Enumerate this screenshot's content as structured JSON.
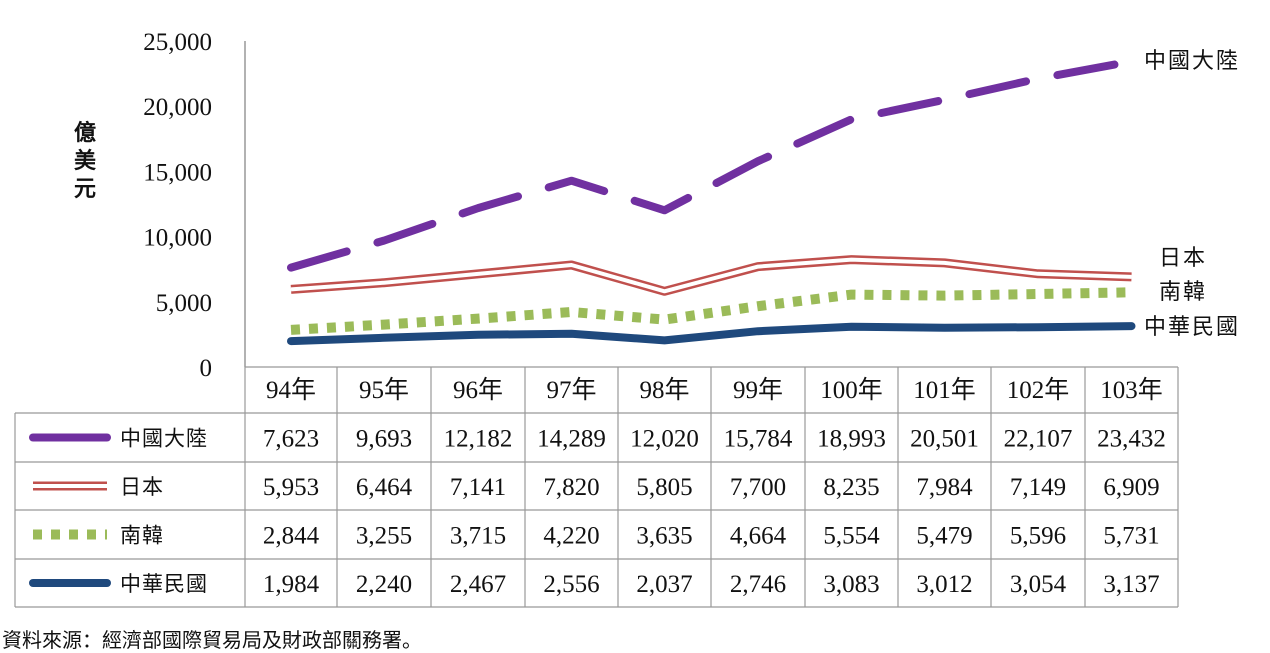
{
  "chart_data": {
    "type": "line",
    "ylabel": "億美元",
    "ylim": [
      0,
      25000
    ],
    "yticks": [
      "0",
      "5,000",
      "10,000",
      "15,000",
      "20,000",
      "25,000"
    ],
    "categories": [
      "94年",
      "95年",
      "96年",
      "97年",
      "98年",
      "99年",
      "100年",
      "101年",
      "102年",
      "103年"
    ],
    "series": [
      {
        "name": "中國大陸",
        "values": [
          7623,
          9693,
          12182,
          14289,
          12020,
          15784,
          18993,
          20501,
          22107,
          23432
        ],
        "display": [
          "7,623",
          "9,693",
          "12,182",
          "14,289",
          "12,020",
          "15,784",
          "18,993",
          "20,501",
          "22,107",
          "23,432"
        ],
        "color": "#7030a0",
        "style": "dashed"
      },
      {
        "name": "日本",
        "values": [
          5953,
          6464,
          7141,
          7820,
          5805,
          7700,
          8235,
          7984,
          7149,
          6909
        ],
        "display": [
          "5,953",
          "6,464",
          "7,141",
          "7,820",
          "5,805",
          "7,700",
          "8,235",
          "7,984",
          "7,149",
          "6,909"
        ],
        "color": "#c0504d",
        "style": "double"
      },
      {
        "name": "南韓",
        "values": [
          2844,
          3255,
          3715,
          4220,
          3635,
          4664,
          5554,
          5479,
          5596,
          5731
        ],
        "display": [
          "2,844",
          "3,255",
          "3,715",
          "4,220",
          "3,635",
          "4,664",
          "5,554",
          "5,479",
          "5,596",
          "5,731"
        ],
        "color": "#9bbb59",
        "style": "dotted"
      },
      {
        "name": "中華民國",
        "values": [
          1984,
          2240,
          2467,
          2556,
          2037,
          2746,
          3083,
          3012,
          3054,
          3137
        ],
        "display": [
          "1,984",
          "2,240",
          "2,467",
          "2,556",
          "2,037",
          "2,746",
          "3,083",
          "3,012",
          "3,054",
          "3,137"
        ],
        "color": "#1f497d",
        "style": "solid"
      }
    ],
    "end_labels": [
      "中國大陸",
      "日本",
      "南韓",
      "中華民國"
    ],
    "grid": false,
    "legend": "data-table"
  },
  "source_note": "資料來源：經濟部國際貿易局及財政部關務署。"
}
